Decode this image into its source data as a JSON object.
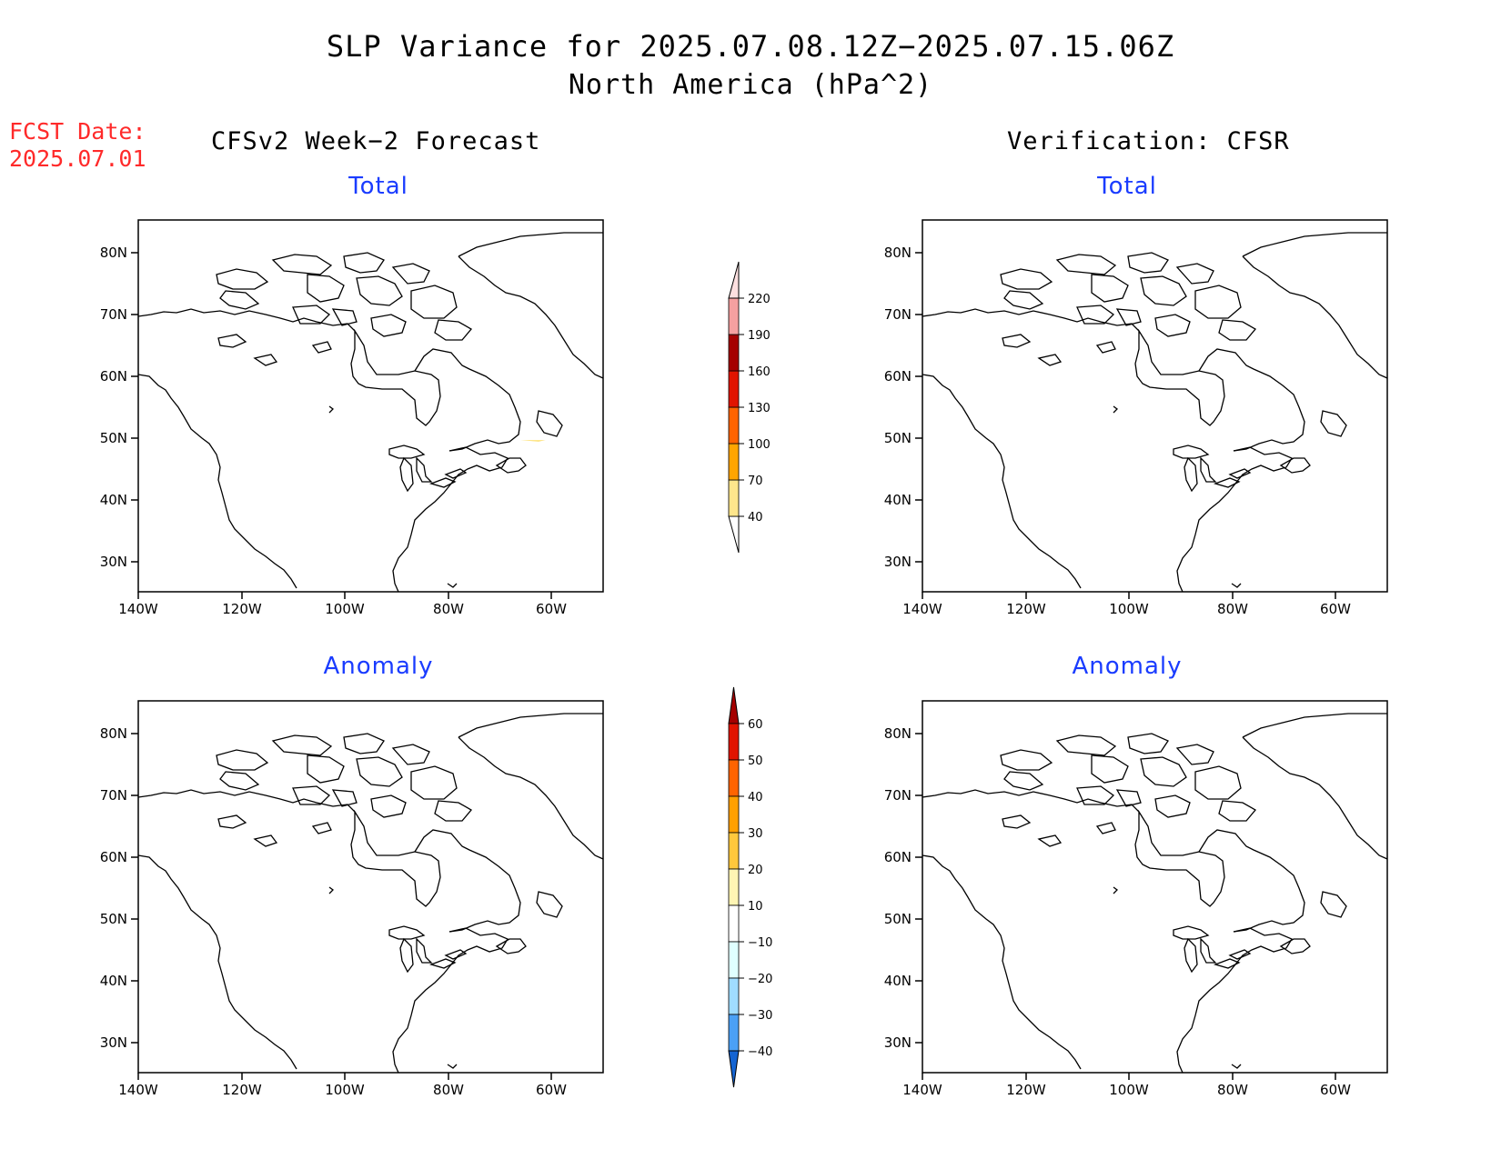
{
  "header": {
    "title": "SLP Variance for 2025.07.08.12Z−2025.07.15.06Z",
    "subtitle": "North America (hPa^2)",
    "fcst_label": "FCST Date:",
    "fcst_date": "2025.07.01"
  },
  "columns": {
    "left": "CFSv2 Week−2 Forecast",
    "right": "Verification: CFSR"
  },
  "panels": {
    "total_label": "Total",
    "anomaly_label": "Anomaly"
  },
  "axes": {
    "lat_ticks": [
      "80N",
      "70N",
      "60N",
      "50N",
      "40N",
      "30N"
    ],
    "lon_ticks": [
      "140W",
      "120W",
      "100W",
      "80W",
      "60W"
    ],
    "lon_range": [
      -140,
      -50
    ],
    "lat_range": [
      25,
      85
    ]
  },
  "colors": {
    "total": [
      "#fee68c",
      "#ffa500",
      "#ff6400",
      "#e11400",
      "#a50000",
      "#f5a0a0",
      "#fde0e0"
    ],
    "anomaly_pos": [
      "#fff5b4",
      "#ffc83c",
      "#ffa000",
      "#ff6400",
      "#e11400",
      "#a50000"
    ],
    "anomaly_neg": [
      "#e0ffff",
      "#a0dcff",
      "#4ba0f5",
      "#1464d2"
    ],
    "title_blue": "#1a3cff",
    "fcst_red": "#ff2a2a"
  },
  "legend_total": {
    "labels": [
      "40",
      "70",
      "100",
      "130",
      "160",
      "190",
      "220"
    ]
  },
  "legend_anomaly": {
    "labels": [
      "60",
      "50",
      "40",
      "30",
      "20",
      "10",
      "−10",
      "−20",
      "−30",
      "−40"
    ]
  }
}
